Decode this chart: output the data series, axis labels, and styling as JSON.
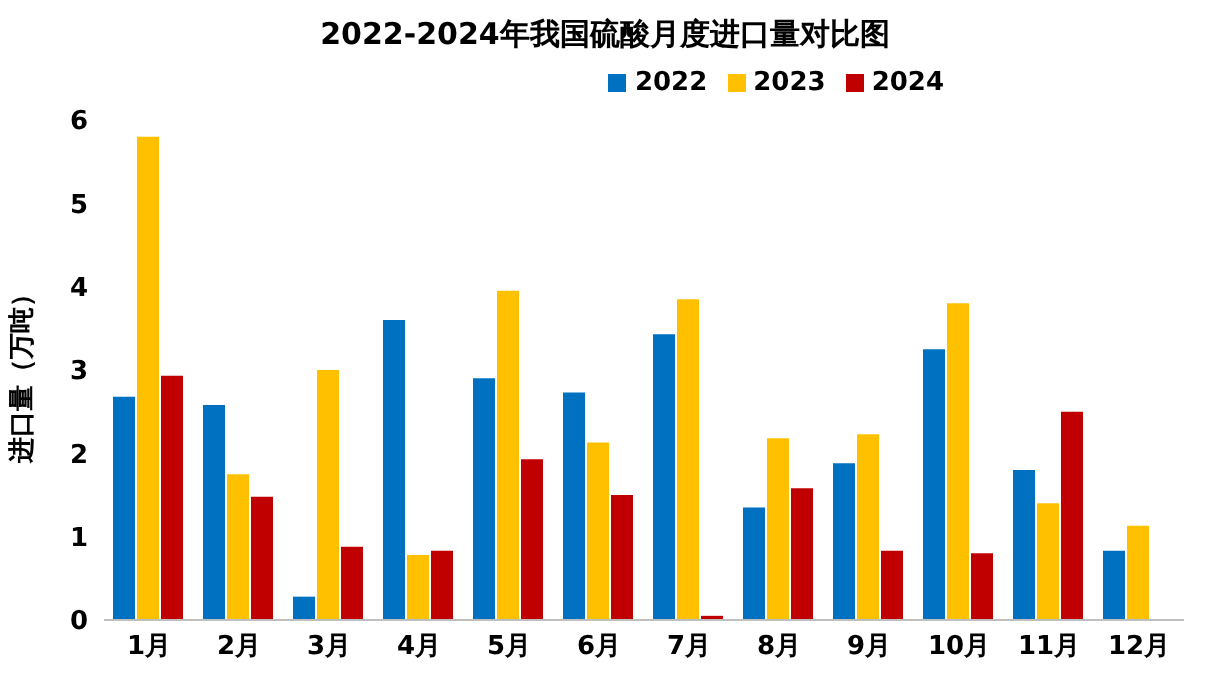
{
  "chart_data": {
    "type": "bar",
    "title": "2022-2024年我国硫酸月度进口量对比图",
    "ylabel": "进口量（万吨）",
    "categories": [
      "1月",
      "2月",
      "3月",
      "4月",
      "5月",
      "6月",
      "7月",
      "8月",
      "9月",
      "10月",
      "11月",
      "12月"
    ],
    "series": [
      {
        "name": "2022",
        "color": "#0070c0",
        "values": [
          2.68,
          2.58,
          0.28,
          3.6,
          2.9,
          2.73,
          3.43,
          1.35,
          1.88,
          3.25,
          1.8,
          0.83
        ]
      },
      {
        "name": "2023",
        "color": "#ffc000",
        "values": [
          5.8,
          1.75,
          3.0,
          0.78,
          3.95,
          2.13,
          3.85,
          2.18,
          2.23,
          3.8,
          1.4,
          1.13
        ]
      },
      {
        "name": "2024",
        "color": "#c00000",
        "values": [
          2.93,
          1.48,
          0.88,
          0.83,
          1.93,
          1.5,
          0.05,
          1.58,
          0.83,
          0.8,
          2.5,
          null
        ]
      }
    ],
    "ylim": [
      0,
      6
    ],
    "yticks": [
      0,
      1,
      2,
      3,
      4,
      5,
      6
    ],
    "grid": false,
    "legend": "top right"
  }
}
